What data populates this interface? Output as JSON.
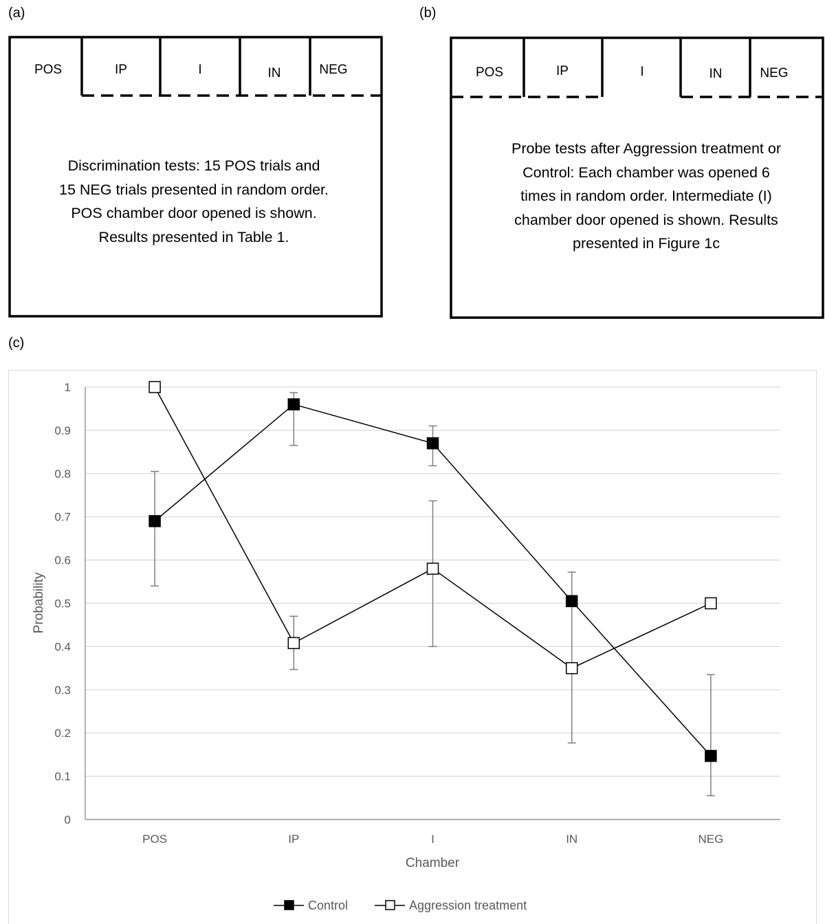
{
  "panels": {
    "a": {
      "label": "(a)",
      "chambers": [
        "POS",
        "IP",
        "I",
        "IN",
        "NEG"
      ],
      "text": "Discrimination tests: 15 POS trials and 15 NEG trials presented in random order. POS chamber door opened is shown. Results presented in Table 1."
    },
    "b": {
      "label": "(b)",
      "chambers": [
        "POS",
        "IP",
        "I",
        "IN",
        "NEG"
      ],
      "text": "Probe tests after Aggression treatment or Control: Each chamber was opened 6 times in random order. Intermediate (I) chamber door opened is shown. Results presented in Figure 1c"
    },
    "c": {
      "label": "(c)"
    }
  },
  "chart_data": {
    "type": "line",
    "title": "",
    "xlabel": "Chamber",
    "ylabel": "Probability",
    "categories": [
      "POS",
      "IP",
      "I",
      "IN",
      "NEG"
    ],
    "ylim": [
      0,
      1
    ],
    "yticks": [
      "0",
      "0.1",
      "0.2",
      "0.3",
      "0.4",
      "0.5",
      "0.6",
      "0.7",
      "0.8",
      "0.9",
      "1"
    ],
    "grid": true,
    "legend": "bottom-center",
    "series": [
      {
        "name": "Control",
        "marker": "filled-square",
        "color": "#000000",
        "values": [
          0.69,
          0.96,
          0.87,
          0.505,
          0.147
        ],
        "error_low": [
          0.54,
          0.865,
          0.818,
          0.177,
          0.055
        ],
        "error_high": [
          0.805,
          0.987,
          0.91,
          0.572,
          0.335
        ]
      },
      {
        "name": "Aggression treatment",
        "marker": "open-square",
        "color": "#000000",
        "values": [
          1.0,
          0.408,
          0.58,
          0.35,
          0.5
        ],
        "error_low": [
          null,
          0.347,
          0.4,
          null,
          null
        ],
        "error_high": [
          null,
          0.47,
          0.737,
          null,
          null
        ]
      }
    ]
  }
}
